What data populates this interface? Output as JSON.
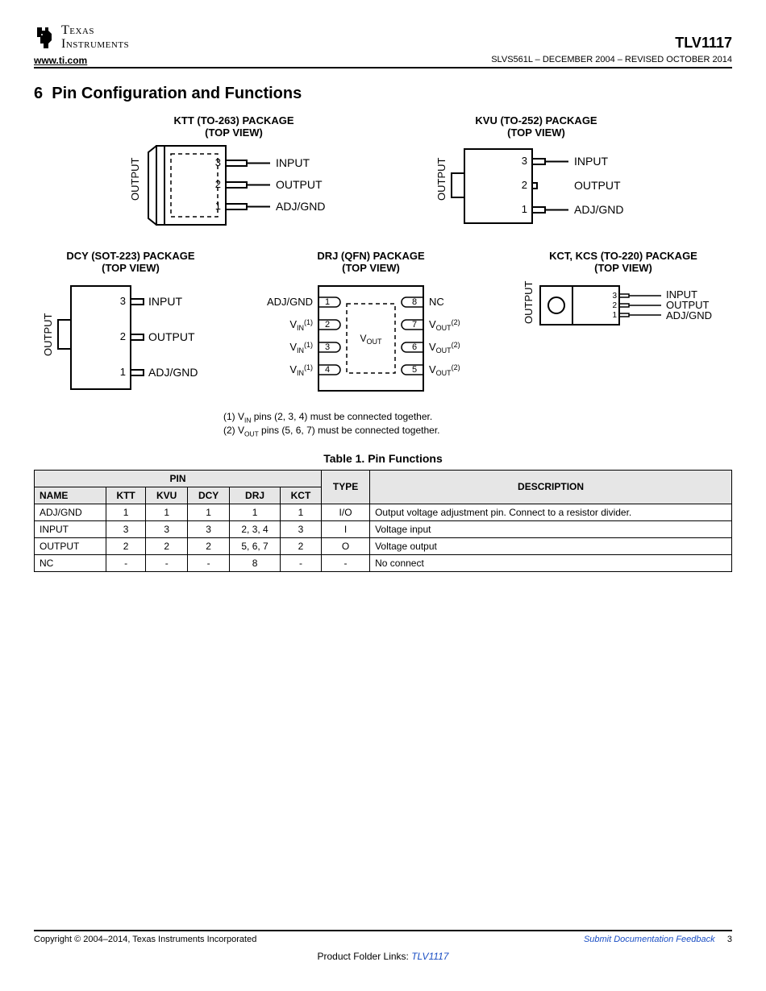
{
  "header": {
    "company_line1": "Texas",
    "company_line2": "Instruments",
    "part_number": "TLV1117",
    "url": "www.ti.com",
    "doc_ref": "SLVS561L – DECEMBER 2004 – REVISED OCTOBER 2014"
  },
  "section": {
    "number": "6",
    "title": "Pin Configuration and Functions"
  },
  "packages": {
    "ktt": {
      "title": "KTT (TO-263) PACKAGE",
      "view": "(TOP VIEW)",
      "output": "OUTPUT",
      "pins": [
        {
          "n": "3",
          "l": "INPUT"
        },
        {
          "n": "2",
          "l": "OUTPUT"
        },
        {
          "n": "1",
          "l": "ADJ/GND"
        }
      ]
    },
    "kvu": {
      "title": "KVU (TO-252) PACKAGE",
      "view": "(TOP VIEW)",
      "output": "OUTPUT",
      "pins": [
        {
          "n": "3",
          "l": "INPUT"
        },
        {
          "n": "2",
          "l": "OUTPUT"
        },
        {
          "n": "1",
          "l": "ADJ/GND"
        }
      ]
    },
    "dcy": {
      "title": "DCY (SOT-223) PACKAGE",
      "view": "(TOP VIEW)",
      "output": "OUTPUT",
      "pins": [
        {
          "n": "3",
          "l": "INPUT"
        },
        {
          "n": "2",
          "l": "OUTPUT"
        },
        {
          "n": "1",
          "l": "ADJ/GND"
        }
      ]
    },
    "drj": {
      "title": "DRJ (QFN) PACKAGE",
      "view": "(TOP VIEW)",
      "center": "VOUT",
      "left": [
        {
          "n": "1",
          "l": "ADJ/GND"
        },
        {
          "n": "2",
          "l": "VIN(1)"
        },
        {
          "n": "3",
          "l": "VIN(1)"
        },
        {
          "n": "4",
          "l": "VIN(1)"
        }
      ],
      "right": [
        {
          "n": "8",
          "l": "NC"
        },
        {
          "n": "7",
          "l": "VOUT(2)"
        },
        {
          "n": "6",
          "l": "VOUT(2)"
        },
        {
          "n": "5",
          "l": "VOUT(2)"
        }
      ]
    },
    "kct": {
      "title": "KCT, KCS (TO-220) PACKAGE",
      "view": "(TOP VIEW)",
      "output": "OUTPUT",
      "pins": [
        {
          "n": "3",
          "l": "INPUT"
        },
        {
          "n": "2",
          "l": "OUTPUT"
        },
        {
          "n": "1",
          "l": "ADJ/GND"
        }
      ]
    }
  },
  "notes": {
    "n1": "(1) VIN pins (2, 3, 4) must be connected together.",
    "n2": "(2) VOUT pins (5, 6, 7) must be connected together."
  },
  "table": {
    "caption": "Table 1. Pin Functions",
    "head_pin": "PIN",
    "head_name": "NAME",
    "head_type": "TYPE",
    "head_desc": "DESCRIPTION",
    "cols": [
      "KTT",
      "KVU",
      "DCY",
      "DRJ",
      "KCT"
    ],
    "rows": [
      {
        "name": "ADJ/GND",
        "v": [
          "1",
          "1",
          "1",
          "1",
          "1"
        ],
        "type": "I/O",
        "desc": "Output voltage adjustment pin. Connect to a resistor divider."
      },
      {
        "name": "INPUT",
        "v": [
          "3",
          "3",
          "3",
          "2, 3, 4",
          "3"
        ],
        "type": "I",
        "desc": "Voltage input"
      },
      {
        "name": "OUTPUT",
        "v": [
          "2",
          "2",
          "2",
          "5, 6, 7",
          "2"
        ],
        "type": "O",
        "desc": "Voltage output"
      },
      {
        "name": "NC",
        "v": [
          "-",
          "-",
          "-",
          "8",
          "-"
        ],
        "type": "-",
        "desc": "No connect"
      }
    ]
  },
  "footer": {
    "copyright": "Copyright © 2004–2014, Texas Instruments Incorporated",
    "feedback": "Submit Documentation Feedback",
    "page": "3",
    "folder_prefix": "Product Folder Links: ",
    "folder_link": "TLV1117"
  },
  "colors": {
    "text": "#000000",
    "bg": "#ffffff",
    "table_header_bg": "#e6e6e6",
    "link": "#1a4ec4"
  }
}
